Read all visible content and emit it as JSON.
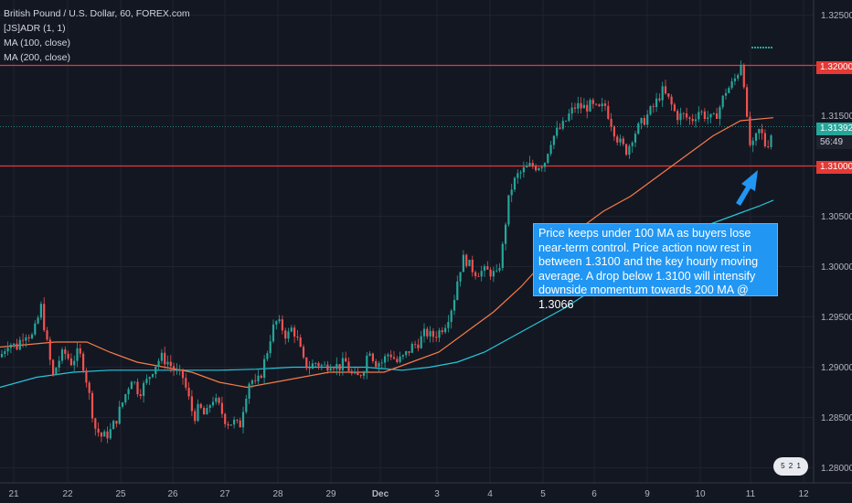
{
  "legend": {
    "symbol": "British Pound / U.S. Dollar, 60, FOREX.com",
    "ind1": "[JS]ADR (1, 1)",
    "ind2": "MA (100, close)",
    "ind3": "MA (200, close)"
  },
  "annotation": "Price keeps under 100 MA as buyers lose near-term control. Price action now rest in between 1.3100 and the key hourly moving average. A drop below 1.3100 will intensify downside momentum towards 200 MA @ 1.3066",
  "price_tags": {
    "resistance": "1.32000",
    "current": "1.31392",
    "countdown": "56:49",
    "support": "1.31000"
  },
  "flag_badge": {
    "a": "5",
    "b": "2",
    "c": "1"
  },
  "colors": {
    "background": "#131722",
    "up": "#26a69a",
    "down": "#ef5350",
    "ma100": "#f57c48",
    "ma200": "#26c6da",
    "levels": "#e53935",
    "arrow": "#2196f3"
  },
  "chart_data": {
    "type": "candlestick",
    "x_ticks": [
      "21",
      "22",
      "25",
      "26",
      "27",
      "28",
      "29",
      "Dec",
      "3",
      "4",
      "5",
      "6",
      "9",
      "10",
      "11",
      "12"
    ],
    "y_ticks": [
      1.28,
      1.285,
      1.29,
      1.295,
      1.3,
      1.305,
      1.31,
      1.315,
      1.32,
      1.325
    ],
    "ylim": [
      1.2785,
      1.3265
    ],
    "horizontal_levels": [
      1.32,
      1.31
    ],
    "current_price": 1.31392,
    "close_path": [
      [
        0,
        1.291
      ],
      [
        9,
        1.2925
      ],
      [
        18,
        1.292
      ],
      [
        27,
        1.2935
      ],
      [
        36,
        1.293
      ],
      [
        45,
        1.296
      ],
      [
        52,
        1.292
      ],
      [
        58,
        1.289
      ],
      [
        63,
        1.2905
      ],
      [
        70,
        1.2915
      ],
      [
        78,
        1.2905
      ],
      [
        86,
        1.2915
      ],
      [
        92,
        1.29
      ],
      [
        98,
        1.287
      ],
      [
        104,
        1.284
      ],
      [
        112,
        1.283
      ],
      [
        120,
        1.2835
      ],
      [
        128,
        1.285
      ],
      [
        136,
        1.287
      ],
      [
        144,
        1.289
      ],
      [
        152,
        1.2875
      ],
      [
        160,
        1.2885
      ],
      [
        168,
        1.29
      ],
      [
        176,
        1.291
      ],
      [
        184,
        1.2905
      ],
      [
        192,
        1.2895
      ],
      [
        200,
        1.289
      ],
      [
        206,
        1.287
      ],
      [
        212,
        1.285
      ],
      [
        218,
        1.286
      ],
      [
        225,
        1.285
      ],
      [
        232,
        1.287
      ],
      [
        240,
        1.286
      ],
      [
        248,
        1.2845
      ],
      [
        256,
        1.2845
      ],
      [
        262,
        1.284
      ],
      [
        268,
        1.287
      ],
      [
        274,
        1.289
      ],
      [
        280,
        1.288
      ],
      [
        286,
        1.2895
      ],
      [
        292,
        1.2915
      ],
      [
        297,
        1.2935
      ],
      [
        302,
        1.2945
      ],
      [
        308,
        1.294
      ],
      [
        314,
        1.293
      ],
      [
        320,
        1.294
      ],
      [
        326,
        1.2925
      ],
      [
        332,
        1.2905
      ],
      [
        338,
        1.29
      ],
      [
        346,
        1.2905
      ],
      [
        354,
        1.29
      ],
      [
        362,
        1.2905
      ],
      [
        370,
        1.29
      ],
      [
        378,
        1.2905
      ],
      [
        386,
        1.289
      ],
      [
        392,
        1.289
      ],
      [
        398,
        1.29
      ],
      [
        404,
        1.292
      ],
      [
        410,
        1.2905
      ],
      [
        418,
        1.2905
      ],
      [
        426,
        1.2915
      ],
      [
        434,
        1.2905
      ],
      [
        442,
        1.291
      ],
      [
        450,
        1.292
      ],
      [
        458,
        1.2925
      ],
      [
        466,
        1.2935
      ],
      [
        472,
        1.293
      ],
      [
        480,
        1.2935
      ],
      [
        488,
        1.2945
      ],
      [
        496,
        1.2965
      ],
      [
        502,
        1.2995
      ],
      [
        508,
        1.301
      ],
      [
        514,
        1.3
      ],
      [
        520,
        1.2995
      ],
      [
        528,
        1.2995
      ],
      [
        536,
        1.2995
      ],
      [
        544,
        1.299
      ],
      [
        550,
        1.302
      ],
      [
        555,
        1.306
      ],
      [
        560,
        1.308
      ],
      [
        566,
        1.309
      ],
      [
        572,
        1.3095
      ],
      [
        580,
        1.31
      ],
      [
        588,
        1.31
      ],
      [
        596,
        1.3105
      ],
      [
        602,
        1.3125
      ],
      [
        610,
        1.3135
      ],
      [
        616,
        1.314
      ],
      [
        622,
        1.315
      ],
      [
        630,
        1.316
      ],
      [
        638,
        1.3158
      ],
      [
        646,
        1.316
      ],
      [
        654,
        1.3155
      ],
      [
        662,
        1.316
      ],
      [
        668,
        1.3145
      ],
      [
        674,
        1.313
      ],
      [
        680,
        1.312
      ],
      [
        686,
        1.3115
      ],
      [
        692,
        1.313
      ],
      [
        700,
        1.314
      ],
      [
        708,
        1.315
      ],
      [
        716,
        1.316
      ],
      [
        724,
        1.3175
      ],
      [
        732,
        1.3165
      ],
      [
        740,
        1.315
      ],
      [
        748,
        1.315
      ],
      [
        756,
        1.3145
      ],
      [
        764,
        1.3155
      ],
      [
        772,
        1.315
      ],
      [
        780,
        1.3145
      ],
      [
        788,
        1.316
      ],
      [
        794,
        1.3175
      ],
      [
        800,
        1.318
      ],
      [
        806,
        1.319
      ],
      [
        811,
        1.3205
      ],
      [
        815,
        1.3175
      ],
      [
        818,
        1.313
      ],
      [
        822,
        1.3115
      ],
      [
        826,
        1.3125
      ],
      [
        830,
        1.3135
      ],
      [
        834,
        1.313
      ],
      [
        838,
        1.3118
      ],
      [
        842,
        1.3128
      ],
      [
        846,
        1.3139
      ]
    ],
    "ma100": [
      [
        0,
        1.292
      ],
      [
        60,
        1.2925
      ],
      [
        95,
        1.2925
      ],
      [
        120,
        1.2915
      ],
      [
        150,
        1.2905
      ],
      [
        180,
        1.29
      ],
      [
        210,
        1.2895
      ],
      [
        240,
        1.2885
      ],
      [
        270,
        1.288
      ],
      [
        300,
        1.2885
      ],
      [
        330,
        1.289
      ],
      [
        360,
        1.2895
      ],
      [
        390,
        1.2895
      ],
      [
        420,
        1.2895
      ],
      [
        450,
        1.2905
      ],
      [
        480,
        1.2915
      ],
      [
        510,
        1.2935
      ],
      [
        540,
        1.2955
      ],
      [
        570,
        1.298
      ],
      [
        600,
        1.301
      ],
      [
        630,
        1.3035
      ],
      [
        660,
        1.3055
      ],
      [
        690,
        1.307
      ],
      [
        720,
        1.309
      ],
      [
        750,
        1.311
      ],
      [
        780,
        1.313
      ],
      [
        810,
        1.3145
      ],
      [
        846,
        1.3148
      ]
    ],
    "ma200": [
      [
        0,
        1.288
      ],
      [
        40,
        1.289
      ],
      [
        80,
        1.2895
      ],
      [
        120,
        1.2897
      ],
      [
        160,
        1.2897
      ],
      [
        200,
        1.2897
      ],
      [
        240,
        1.2897
      ],
      [
        280,
        1.2898
      ],
      [
        320,
        1.29
      ],
      [
        360,
        1.29
      ],
      [
        400,
        1.29
      ],
      [
        440,
        1.2897
      ],
      [
        470,
        1.29
      ],
      [
        500,
        1.2905
      ],
      [
        530,
        1.2915
      ],
      [
        560,
        1.293
      ],
      [
        590,
        1.2945
      ],
      [
        620,
        1.296
      ],
      [
        650,
        1.2978
      ],
      [
        680,
        1.2995
      ],
      [
        710,
        1.3012
      ],
      [
        740,
        1.3028
      ],
      [
        770,
        1.304
      ],
      [
        800,
        1.305
      ],
      [
        830,
        1.306
      ],
      [
        846,
        1.3066
      ]
    ]
  }
}
